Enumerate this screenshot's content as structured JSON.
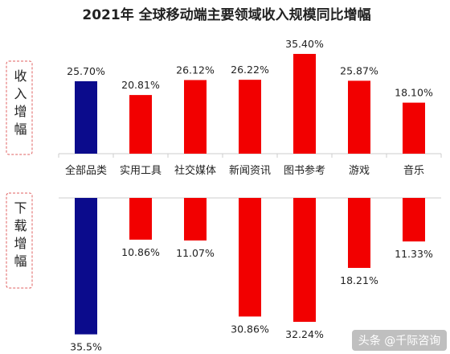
{
  "watermark": "头条 @千际咨询",
  "chart_data": {
    "type": "bar",
    "title": "2021年 全球移动端主要领域收入规模同比增幅",
    "categories": [
      "全部品类",
      "实用工具",
      "社交媒体",
      "新闻资讯",
      "图书参考",
      "游戏",
      "音乐"
    ],
    "series": [
      {
        "name": "收入增幅",
        "values": [
          25.7,
          20.81,
          26.12,
          26.22,
          35.4,
          25.87,
          18.1
        ],
        "labels": [
          "25.70%",
          "20.81%",
          "26.12%",
          "26.22%",
          "35.40%",
          "25.87%",
          "18.10%"
        ]
      },
      {
        "name": "下载增幅",
        "values": [
          35.5,
          10.86,
          11.07,
          30.86,
          32.24,
          18.21,
          11.33
        ],
        "labels": [
          "35.5%",
          "10.86%",
          "11.07%",
          "30.86%",
          "32.24%",
          "18.21%",
          "11.33%"
        ]
      }
    ],
    "highlight_color": "#0b0b8c",
    "bar_color": "#f20000",
    "divider_color": "#e06060",
    "grid": false
  }
}
